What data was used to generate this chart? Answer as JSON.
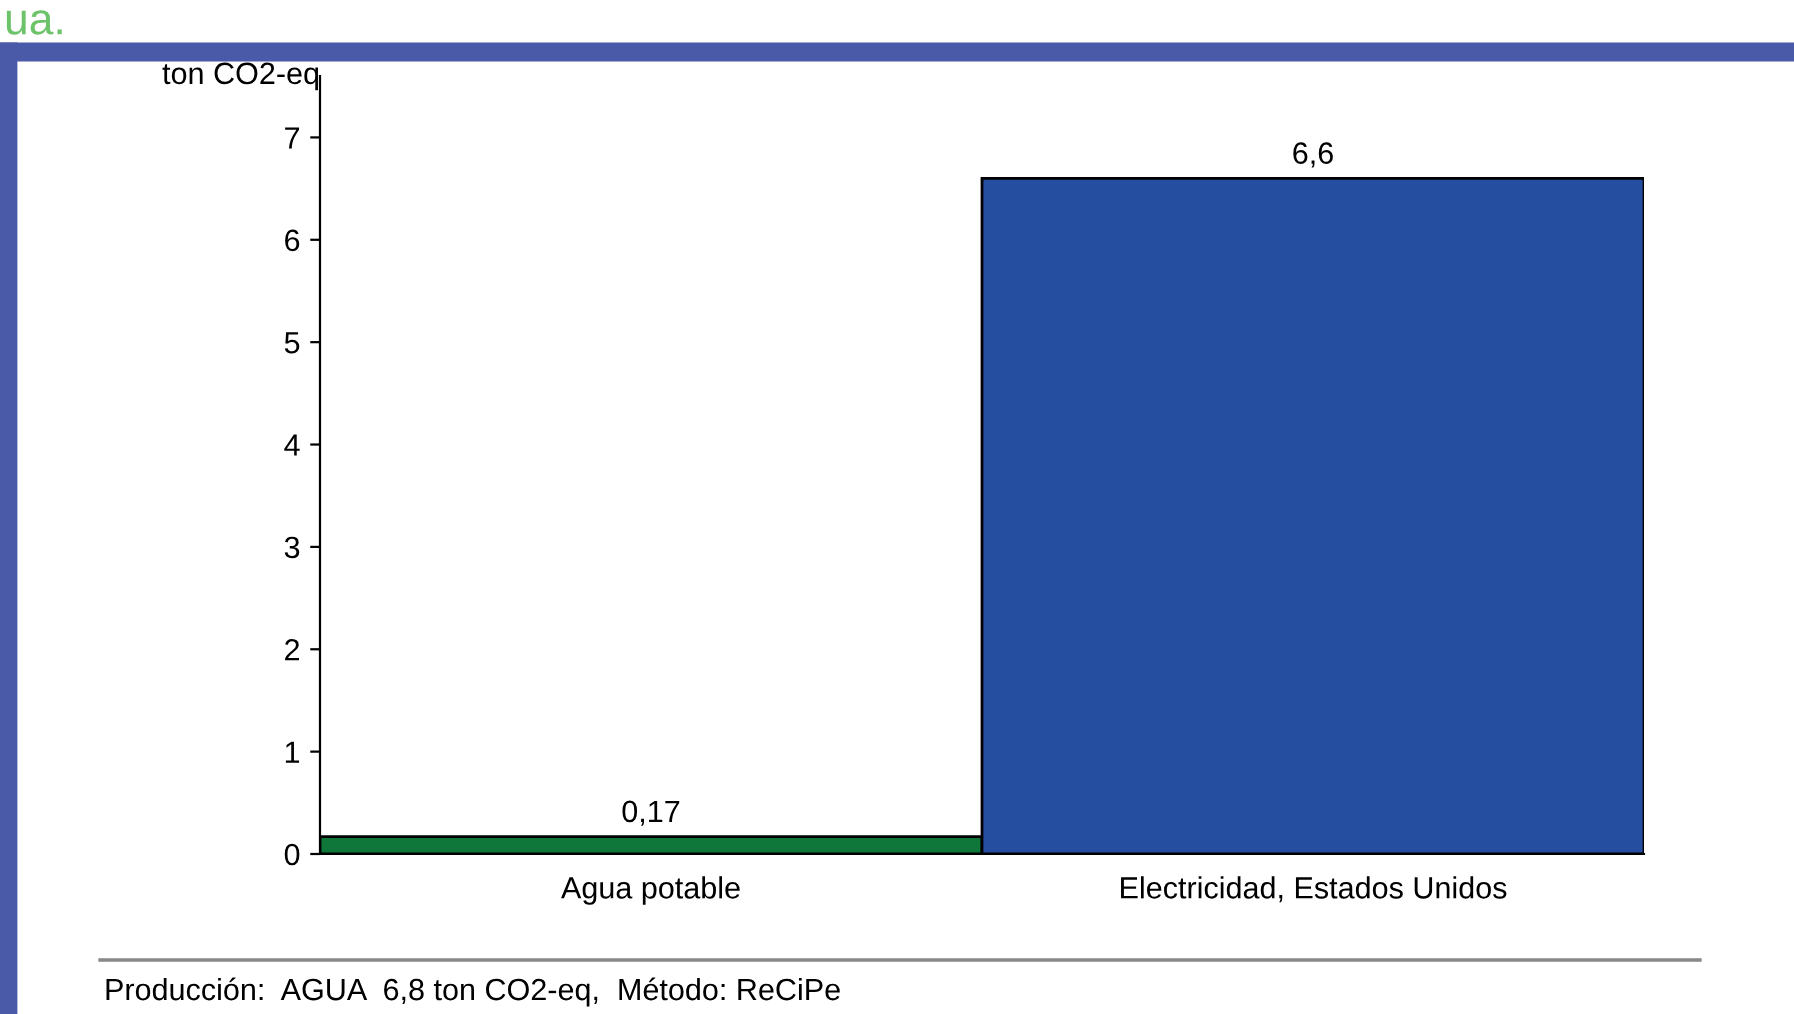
{
  "chart_data": {
    "type": "bar",
    "ylabel": "ton CO2-eq",
    "categories": [
      "Agua potable",
      "Electricidad, Estados Unidos"
    ],
    "values": [
      0.17,
      6.6
    ],
    "colors": [
      "#10773a",
      "#264ea0"
    ],
    "value_labels": [
      "0,17",
      "6,6"
    ],
    "ylim": [
      0,
      7.6
    ],
    "yticks": [
      0,
      1,
      2,
      3,
      4,
      5,
      6,
      7
    ],
    "grid": false,
    "annotations": [
      "ua.",
      "Producción:  AGUA  6,8 ton CO2-eq,  Método: ReCiPe"
    ]
  }
}
